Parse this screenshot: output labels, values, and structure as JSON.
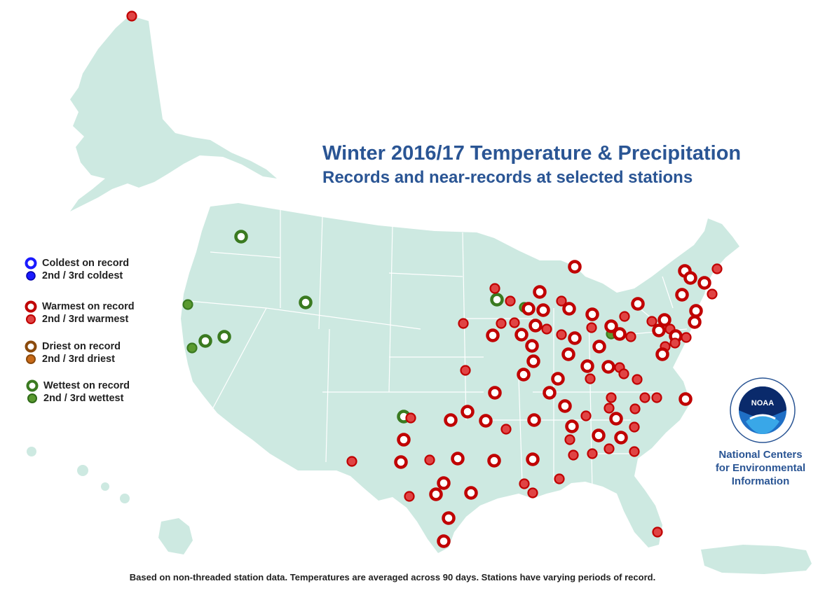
{
  "title": "Winter 2016/17 Temperature & Precipitation",
  "subtitle": "Records and near-records at selected stations",
  "footnote": "Based on non-threaded station data. Temperatures are averaged across 90 days. Stations have varying periods of record.",
  "org": {
    "line1": "National Centers",
    "line2": "for Environmental",
    "line3": "Information",
    "logo_text": "NOAA"
  },
  "colors": {
    "land": "#cde9e1",
    "water": "#ffffff",
    "border": "#ffffff",
    "warm": "#c00000",
    "warm_near": "#e04444",
    "cold": "#1a1aff",
    "dry": "#8b4a0c",
    "wet": "#3a7a20",
    "title": "#2a5594"
  },
  "legend": [
    {
      "label": "Coldest on record",
      "category": "cold",
      "kind": "record"
    },
    {
      "label": "2nd / 3rd coldest",
      "category": "cold",
      "kind": "near"
    },
    {
      "label": "Warmest on record",
      "category": "warm",
      "kind": "record"
    },
    {
      "label": "2nd / 3rd warmest",
      "category": "warm",
      "kind": "near"
    },
    {
      "label": "Driest on record",
      "category": "dry",
      "kind": "record"
    },
    {
      "label": "2nd / 3rd driest",
      "category": "dry",
      "kind": "near"
    },
    {
      "label": "Wettest on record",
      "category": "wet",
      "kind": "record"
    },
    {
      "label": "2nd / 3rd wettest",
      "category": "wet",
      "kind": "near"
    }
  ]
}
